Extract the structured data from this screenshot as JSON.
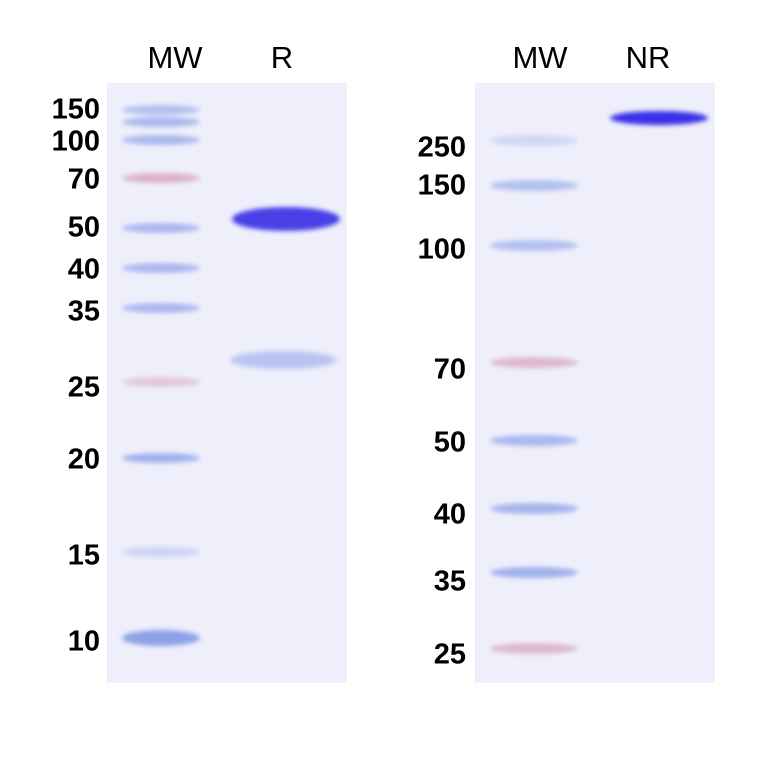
{
  "left_panel": {
    "lanes": [
      "MW",
      "R"
    ],
    "markers": [
      "150",
      "100",
      "70",
      "50",
      "40",
      "35",
      "25",
      "20",
      "15",
      "10"
    ]
  },
  "right_panel": {
    "lanes": [
      "MW",
      "NR"
    ],
    "markers": [
      "250",
      "150",
      "100",
      "70",
      "50",
      "40",
      "35",
      "25"
    ]
  },
  "colors": {
    "gel": "#eeeffb",
    "protein_band": "#3a35e0",
    "marker_blue": "#6e87e1",
    "marker_red": "#c86e96"
  }
}
